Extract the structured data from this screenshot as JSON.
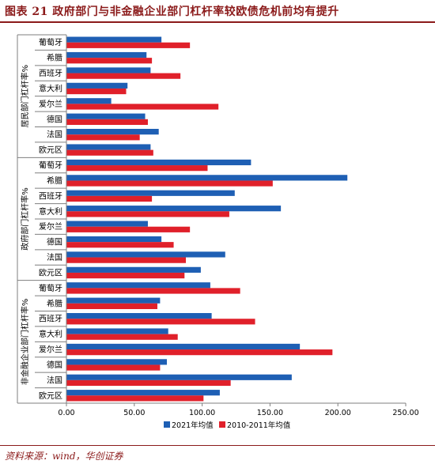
{
  "title": "图表 21   政府部门与非金融企业部门杠杆率较欧债危机前均有提升",
  "source": "资料来源：wind，华创证券",
  "colors": {
    "s2021": "#1e5fb4",
    "s2010": "#e0202a",
    "title": "#8b1a1a"
  },
  "chart_data": {
    "type": "bar",
    "orientation": "horizontal",
    "xlim": [
      0,
      250
    ],
    "xticks": [
      "0.00",
      "50.00",
      "100.00",
      "150.00",
      "200.00",
      "250.00"
    ],
    "xtick_values": [
      0,
      50,
      100,
      150,
      200,
      250
    ],
    "legend": {
      "position": "bottom",
      "entries": [
        "2021年均值",
        "2010-2011年均值"
      ]
    },
    "groups": [
      {
        "label": "居民部门杠杆率%",
        "categories": [
          "葡萄牙",
          "希腊",
          "西班牙",
          "意大利",
          "爱尔兰",
          "德国",
          "法国",
          "欧元区"
        ],
        "series": [
          {
            "name": "2021年均值",
            "values": [
              70,
              59,
              62,
              45,
              33,
              58,
              68,
              62
            ]
          },
          {
            "name": "2010-2011年均值",
            "values": [
              91,
              63,
              84,
              44,
              112,
              60,
              54,
              64
            ]
          }
        ]
      },
      {
        "label": "政府部门杠杆率%",
        "categories": [
          "葡萄牙",
          "希腊",
          "西班牙",
          "意大利",
          "爱尔兰",
          "德国",
          "法国",
          "欧元区"
        ],
        "series": [
          {
            "name": "2021年均值",
            "values": [
              136,
              207,
              124,
              158,
              60,
              70,
              117,
              99
            ]
          },
          {
            "name": "2010-2011年均值",
            "values": [
              104,
              152,
              63,
              120,
              91,
              79,
              88,
              87
            ]
          }
        ]
      },
      {
        "label": "非金融企业部门杠杆率%",
        "categories": [
          "葡萄牙",
          "希腊",
          "西班牙",
          "意大利",
          "爱尔兰",
          "德国",
          "法国",
          "欧元区"
        ],
        "series": [
          {
            "name": "2021年均值",
            "values": [
              106,
              69,
              107,
              75,
              172,
              74,
              166,
              113
            ]
          },
          {
            "name": "2010-2011年均值",
            "values": [
              128,
              67,
              139,
              82,
              196,
              69,
              121,
              101
            ]
          }
        ]
      }
    ]
  }
}
